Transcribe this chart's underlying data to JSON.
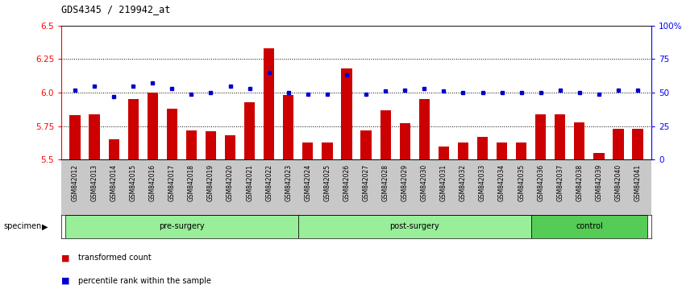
{
  "title": "GDS4345 / 219942_at",
  "categories": [
    "GSM842012",
    "GSM842013",
    "GSM842014",
    "GSM842015",
    "GSM842016",
    "GSM842017",
    "GSM842018",
    "GSM842019",
    "GSM842020",
    "GSM842021",
    "GSM842022",
    "GSM842023",
    "GSM842024",
    "GSM842025",
    "GSM842026",
    "GSM842027",
    "GSM842028",
    "GSM842029",
    "GSM842030",
    "GSM842031",
    "GSM842032",
    "GSM842033",
    "GSM842034",
    "GSM842035",
    "GSM842036",
    "GSM842037",
    "GSM842038",
    "GSM842039",
    "GSM842040",
    "GSM842041"
  ],
  "bar_values": [
    5.83,
    5.84,
    5.65,
    5.95,
    6.0,
    5.88,
    5.72,
    5.71,
    5.68,
    5.93,
    6.33,
    5.98,
    5.63,
    5.63,
    6.18,
    5.72,
    5.87,
    5.77,
    5.95,
    5.6,
    5.63,
    5.67,
    5.63,
    5.63,
    5.84,
    5.84,
    5.78,
    5.55,
    5.73,
    5.73
  ],
  "dot_values": [
    52,
    55,
    47,
    55,
    57,
    53,
    49,
    50,
    55,
    53,
    65,
    50,
    49,
    49,
    63,
    49,
    51,
    52,
    53,
    51,
    50,
    50,
    50,
    50,
    50,
    52,
    50,
    49,
    52,
    52
  ],
  "bar_color": "#cc0000",
  "dot_color": "#0000cc",
  "ylim_left": [
    5.5,
    6.5
  ],
  "ylim_right": [
    0,
    100
  ],
  "yticks_left": [
    5.5,
    5.75,
    6.0,
    6.25,
    6.5
  ],
  "yticks_right": [
    0,
    25,
    50,
    75,
    100
  ],
  "ytick_labels_right": [
    "0",
    "25",
    "50",
    "75",
    "100%"
  ],
  "hlines": [
    5.75,
    6.0,
    6.25
  ],
  "groups": [
    {
      "label": "pre-surgery",
      "start": 0,
      "end": 11,
      "color": "#99ee99"
    },
    {
      "label": "post-surgery",
      "start": 12,
      "end": 23,
      "color": "#99ee99"
    },
    {
      "label": "control",
      "start": 24,
      "end": 29,
      "color": "#55cc55"
    }
  ],
  "legend_items": [
    {
      "label": "transformed count",
      "color": "#cc0000"
    },
    {
      "label": "percentile rank within the sample",
      "color": "#0000cc"
    }
  ],
  "specimen_label": "specimen"
}
